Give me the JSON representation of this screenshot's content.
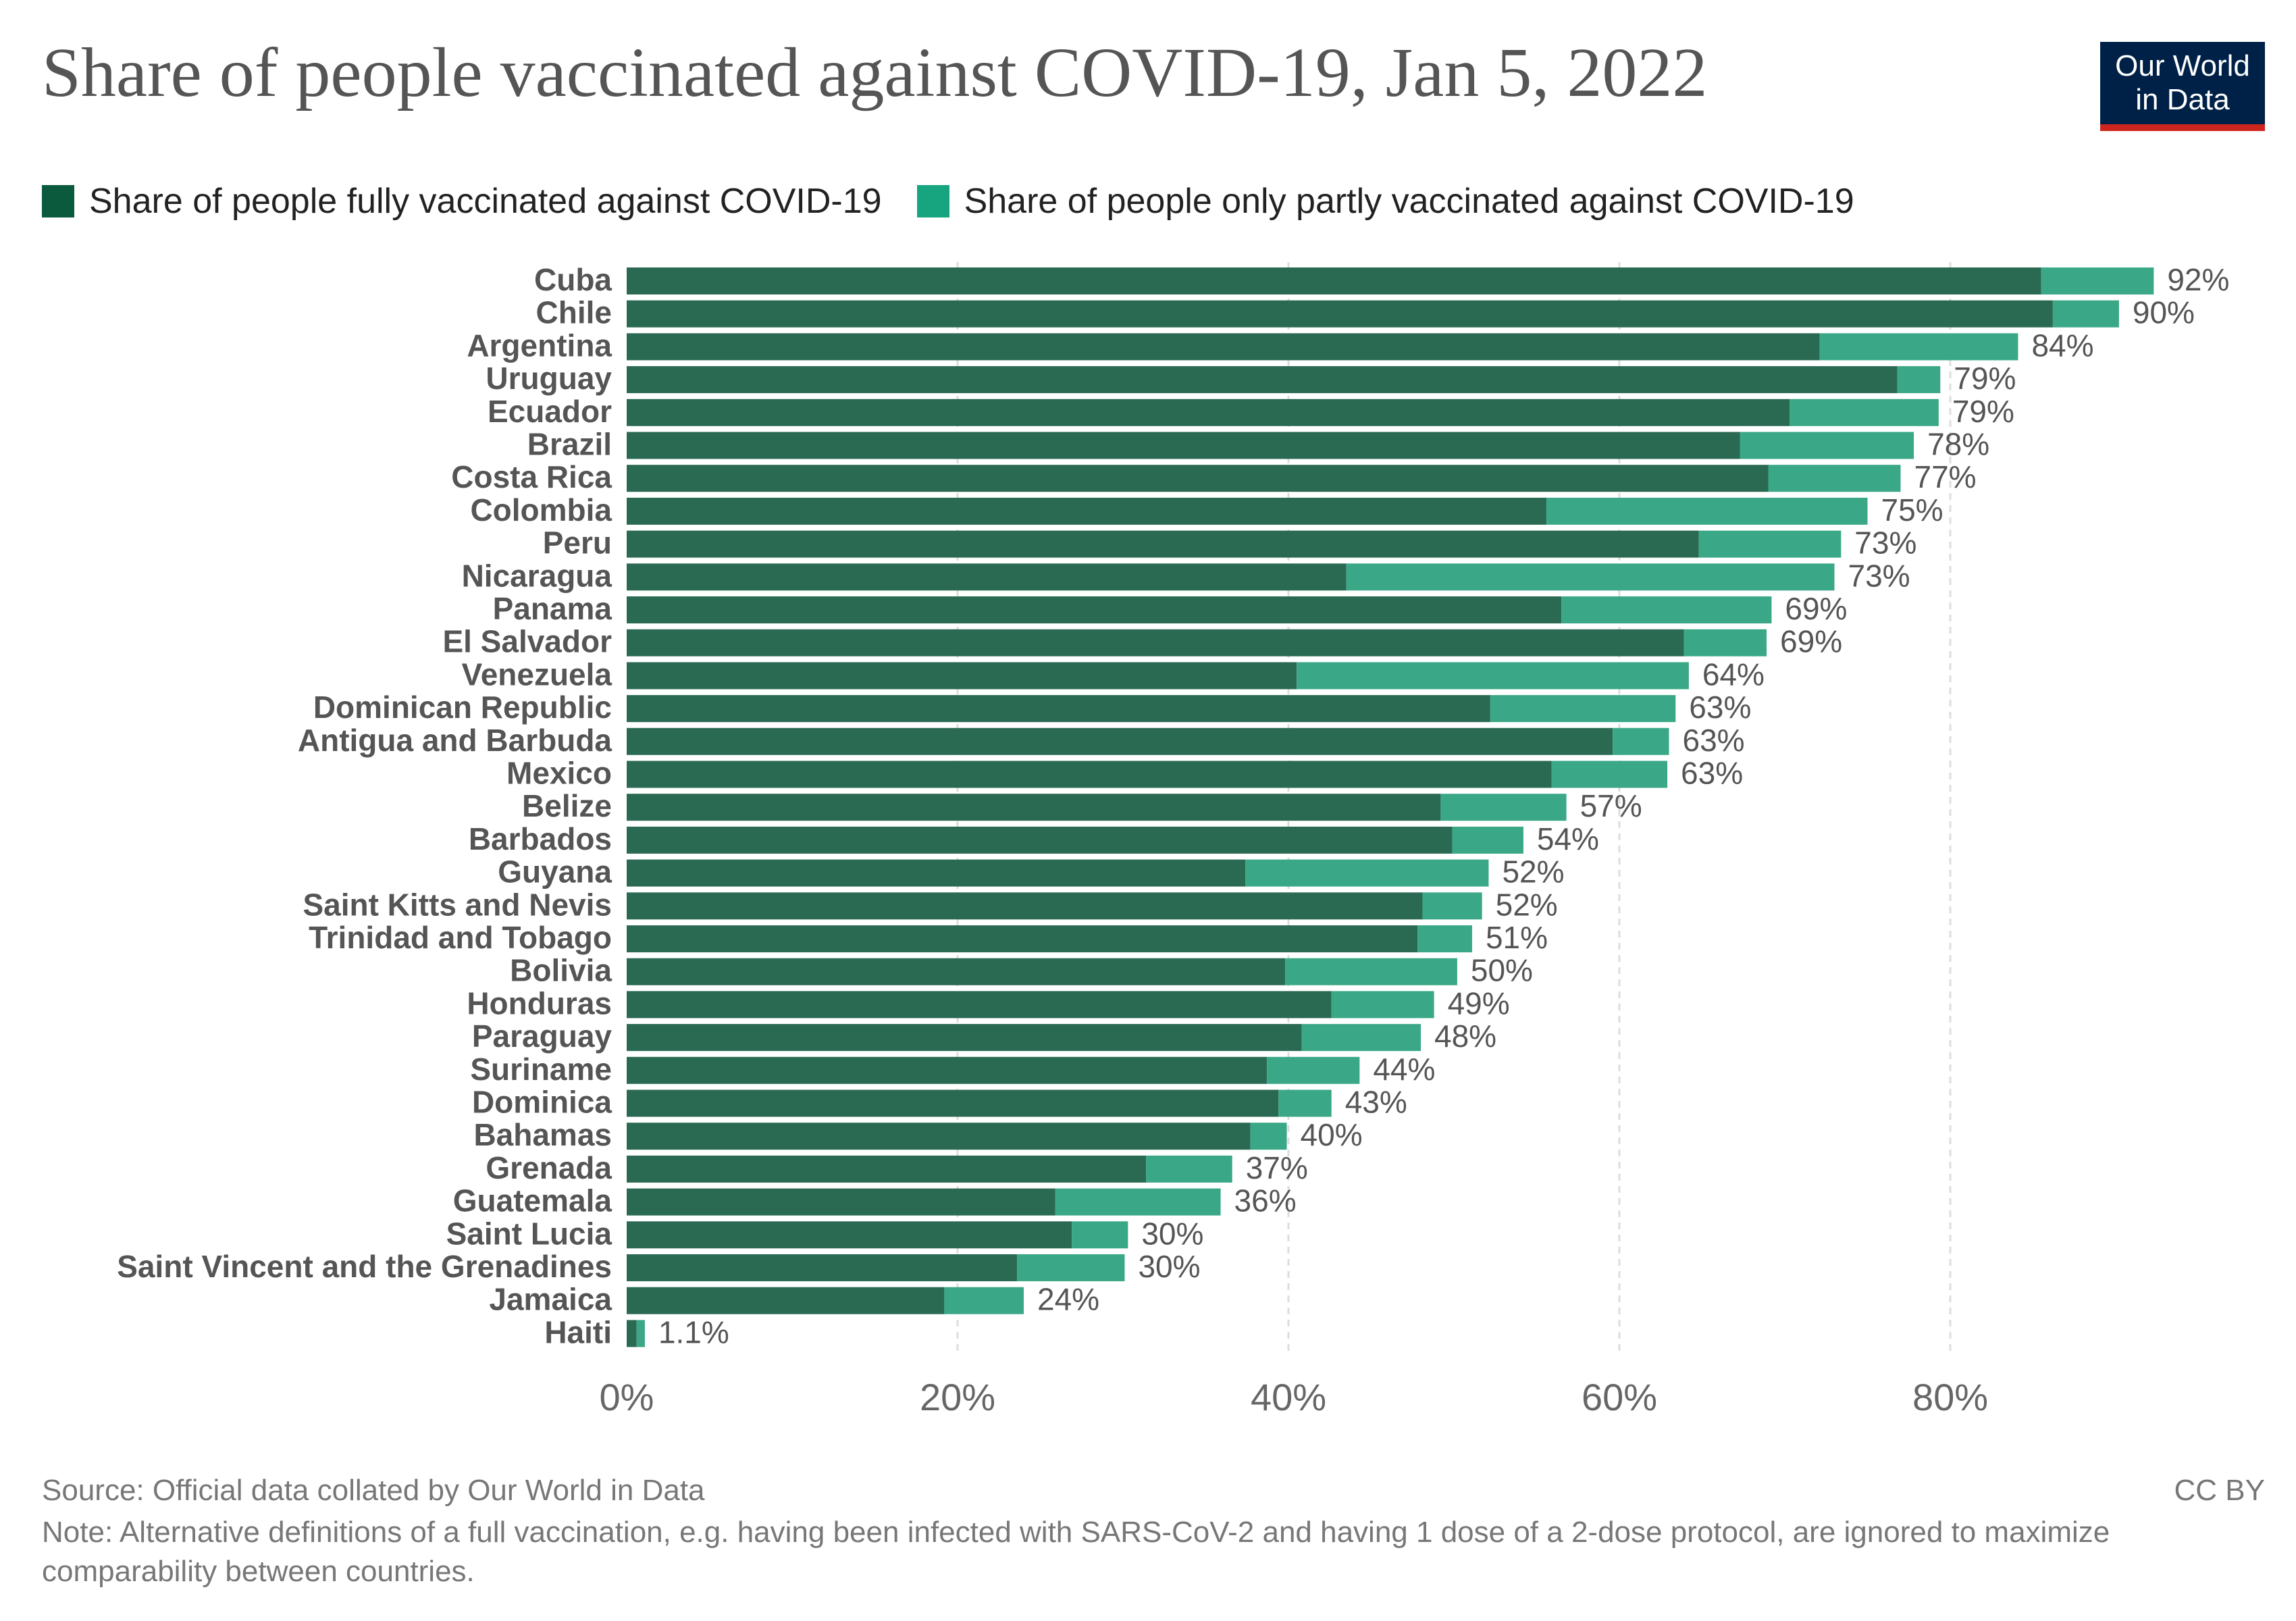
{
  "title": "Share of people vaccinated against COVID-19, Jan 5, 2022",
  "logo": {
    "line1": "Our World",
    "line2": "in Data"
  },
  "colors": {
    "full": "#2b6a52",
    "partial": "#3aa887",
    "legend_full": "#0b5a3e",
    "legend_partial": "#16a57f",
    "grid": "#dddddd",
    "logo_bg": "#002147",
    "logo_accent": "#ce261e"
  },
  "chart_data": {
    "type": "bar",
    "orientation": "horizontal",
    "stacked": true,
    "title": "Share of people vaccinated against COVID-19, Jan 5, 2022",
    "xlabel": "",
    "ylabel": "",
    "xlim": [
      0,
      92
    ],
    "xticks": [
      "0%",
      "20%",
      "40%",
      "60%",
      "80%"
    ],
    "xtick_values": [
      0,
      20,
      40,
      60,
      80
    ],
    "grid": true,
    "legend_position": "top-left",
    "categories": [
      "Cuba",
      "Chile",
      "Argentina",
      "Uruguay",
      "Ecuador",
      "Brazil",
      "Costa Rica",
      "Colombia",
      "Peru",
      "Nicaragua",
      "Panama",
      "El Salvador",
      "Venezuela",
      "Dominican Republic",
      "Antigua and Barbuda",
      "Mexico",
      "Belize",
      "Barbados",
      "Guyana",
      "Saint Kitts and Nevis",
      "Trinidad and Tobago",
      "Bolivia",
      "Honduras",
      "Paraguay",
      "Suriname",
      "Dominica",
      "Bahamas",
      "Grenada",
      "Guatemala",
      "Saint Lucia",
      "Saint Vincent and the Grenadines",
      "Jamaica",
      "Haiti"
    ],
    "series": [
      {
        "name": "Share of people fully vaccinated against COVID-19",
        "values": [
          85.5,
          86.2,
          72.1,
          76.8,
          70.3,
          67.3,
          69.0,
          55.6,
          64.8,
          43.5,
          56.5,
          63.9,
          40.5,
          52.2,
          59.6,
          55.9,
          49.2,
          49.9,
          37.4,
          48.1,
          47.8,
          39.8,
          42.6,
          40.8,
          38.7,
          39.4,
          37.7,
          31.4,
          25.9,
          26.9,
          23.6,
          19.2,
          0.6
        ]
      },
      {
        "name": "Share of people only partly vaccinated against COVID-19",
        "values": [
          6.8,
          4.0,
          12.0,
          2.6,
          9.0,
          10.5,
          8.0,
          19.4,
          8.6,
          29.5,
          12.7,
          5.0,
          23.7,
          11.2,
          3.4,
          7.0,
          7.6,
          4.3,
          14.7,
          3.6,
          3.3,
          10.4,
          6.2,
          7.2,
          5.6,
          3.2,
          2.2,
          5.2,
          10.0,
          3.4,
          6.5,
          4.8,
          0.5
        ]
      }
    ],
    "value_labels": [
      "92%",
      "90%",
      "84%",
      "79%",
      "79%",
      "78%",
      "77%",
      "75%",
      "73%",
      "73%",
      "69%",
      "69%",
      "64%",
      "63%",
      "63%",
      "63%",
      "57%",
      "54%",
      "52%",
      "52%",
      "51%",
      "50%",
      "49%",
      "48%",
      "44%",
      "43%",
      "40%",
      "37%",
      "36%",
      "30%",
      "30%",
      "24%",
      "1.1%"
    ]
  },
  "footer": {
    "source": "Source: Official data collated by Our World in Data",
    "note": "Note: Alternative definitions of a full vaccination, e.g. having been infected with SARS-CoV-2 and having 1 dose of a 2-dose protocol, are ignored to maximize comparability between countries.",
    "license": "CC BY"
  }
}
